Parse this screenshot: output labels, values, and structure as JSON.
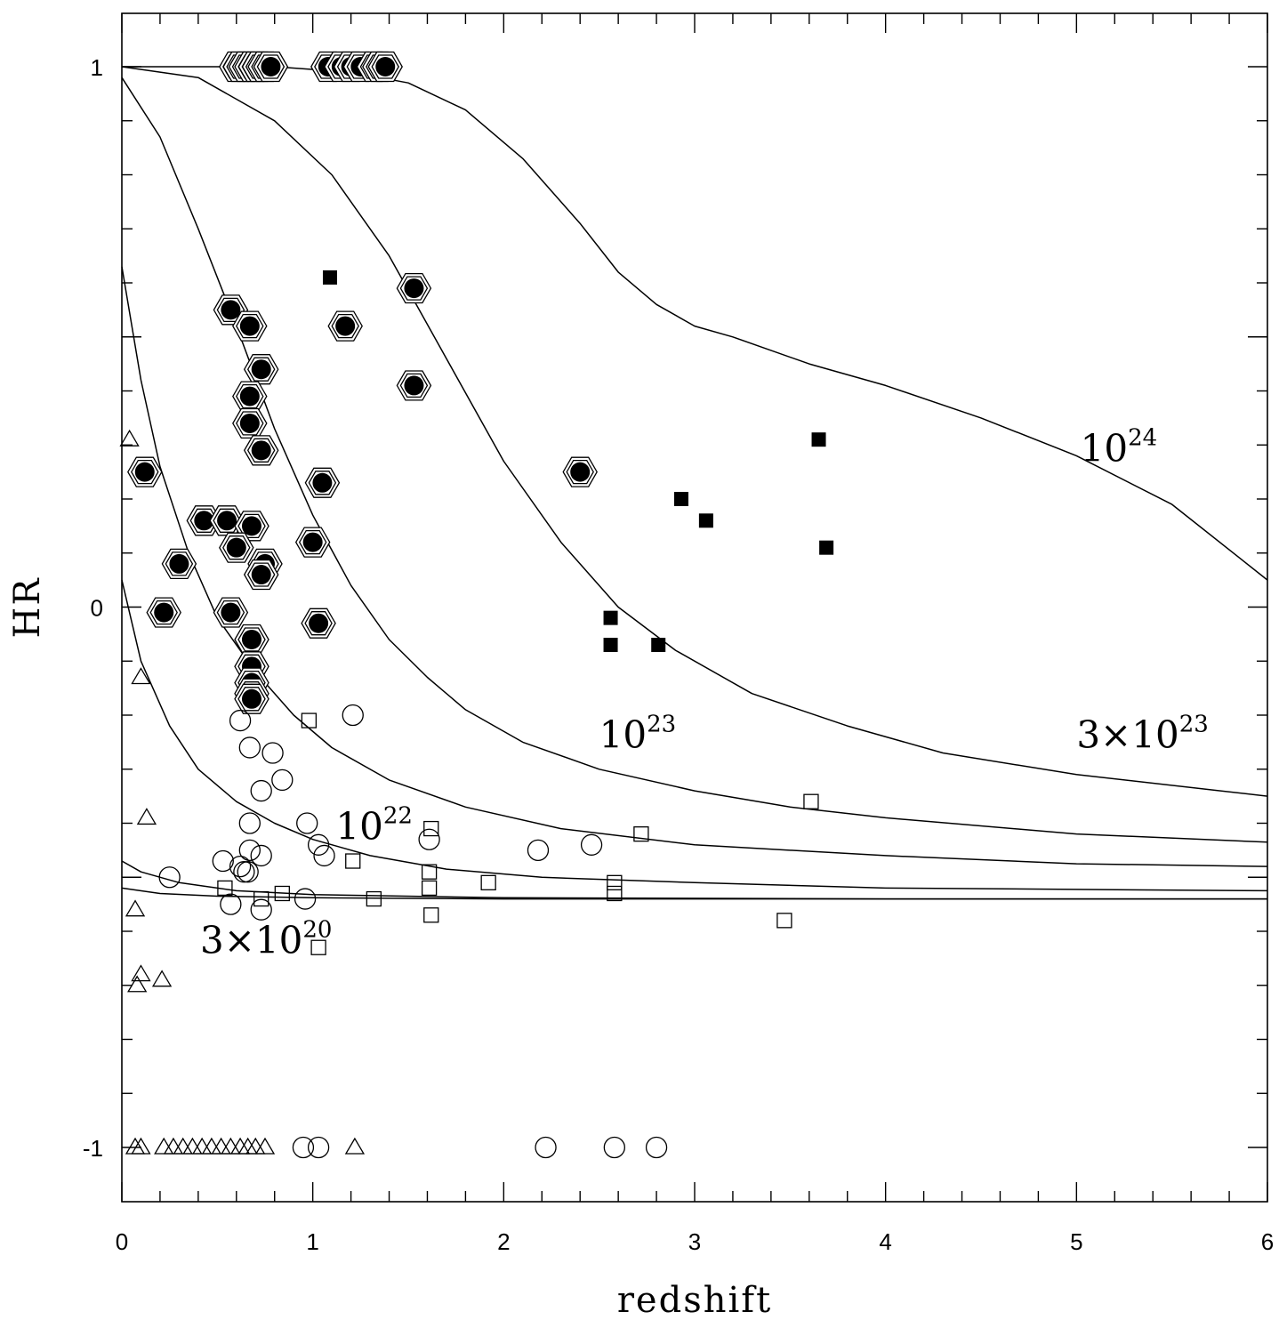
{
  "chart_data": {
    "type": "scatter",
    "title": "",
    "xlabel": "redshift",
    "ylabel": "HR",
    "xlim": [
      0,
      6
    ],
    "ylim": [
      -1.1,
      1.1
    ],
    "x_ticks": [
      {
        "value": 0,
        "label": "0"
      },
      {
        "value": 1,
        "label": "1"
      },
      {
        "value": 2,
        "label": "2"
      },
      {
        "value": 3,
        "label": "3"
      },
      {
        "value": 4,
        "label": "4"
      },
      {
        "value": 5,
        "label": "5"
      },
      {
        "value": 6,
        "label": "6"
      }
    ],
    "y_ticks": [
      {
        "value": -1,
        "label": "-1"
      },
      {
        "value": 0,
        "label": "0"
      },
      {
        "value": 1,
        "label": "1"
      }
    ],
    "curves": [
      {
        "name": "3x10^20",
        "label_base": "3×10",
        "label_exp": "20",
        "label_pos": [
          0.41,
          -0.64
        ],
        "points": [
          [
            0,
            -0.52
          ],
          [
            0.2,
            -0.53
          ],
          [
            0.5,
            -0.535
          ],
          [
            1,
            -0.538
          ],
          [
            2,
            -0.54
          ],
          [
            3,
            -0.54
          ],
          [
            6,
            -0.54
          ]
        ]
      },
      {
        "name": "1e21",
        "label_base": "",
        "label_exp": "",
        "label_pos": null,
        "points": [
          [
            0,
            -0.47
          ],
          [
            0.1,
            -0.49
          ],
          [
            0.3,
            -0.51
          ],
          [
            0.6,
            -0.525
          ],
          [
            1,
            -0.532
          ],
          [
            2,
            -0.538
          ],
          [
            4,
            -0.54
          ],
          [
            6,
            -0.54
          ]
        ]
      },
      {
        "name": "1e22",
        "label_base": "10",
        "label_exp": "22",
        "label_pos": [
          1.12,
          -0.43
        ],
        "points": [
          [
            0,
            0.05
          ],
          [
            0.1,
            -0.1
          ],
          [
            0.25,
            -0.22
          ],
          [
            0.4,
            -0.3
          ],
          [
            0.6,
            -0.36
          ],
          [
            0.8,
            -0.4
          ],
          [
            1,
            -0.43
          ],
          [
            1.3,
            -0.46
          ],
          [
            1.7,
            -0.485
          ],
          [
            2.2,
            -0.5
          ],
          [
            3,
            -0.51
          ],
          [
            4,
            -0.52
          ],
          [
            6,
            -0.525
          ]
        ]
      },
      {
        "name": "3e22",
        "label_base": "",
        "label_exp": "",
        "label_pos": null,
        "points": [
          [
            0,
            0.63
          ],
          [
            0.1,
            0.42
          ],
          [
            0.2,
            0.26
          ],
          [
            0.35,
            0.1
          ],
          [
            0.5,
            -0.02
          ],
          [
            0.7,
            -0.12
          ],
          [
            0.9,
            -0.2
          ],
          [
            1.1,
            -0.26
          ],
          [
            1.4,
            -0.32
          ],
          [
            1.8,
            -0.37
          ],
          [
            2.3,
            -0.41
          ],
          [
            3,
            -0.44
          ],
          [
            4,
            -0.46
          ],
          [
            5,
            -0.475
          ],
          [
            6,
            -0.48
          ]
        ]
      },
      {
        "name": "1e23",
        "label_base": "10",
        "label_exp": "23",
        "label_pos": [
          2.5,
          -0.26
        ],
        "points": [
          [
            0,
            0.98
          ],
          [
            0.2,
            0.87
          ],
          [
            0.4,
            0.7
          ],
          [
            0.6,
            0.52
          ],
          [
            0.8,
            0.33
          ],
          [
            1,
            0.17
          ],
          [
            1.2,
            0.04
          ],
          [
            1.4,
            -0.06
          ],
          [
            1.6,
            -0.13
          ],
          [
            1.8,
            -0.19
          ],
          [
            2.1,
            -0.25
          ],
          [
            2.5,
            -0.3
          ],
          [
            3,
            -0.34
          ],
          [
            3.5,
            -0.37
          ],
          [
            4,
            -0.39
          ],
          [
            5,
            -0.42
          ],
          [
            6,
            -0.435
          ]
        ]
      },
      {
        "name": "3e23",
        "label_base": "3×10",
        "label_exp": "23",
        "label_pos": [
          5.0,
          -0.26
        ],
        "points": [
          [
            0,
            1.0
          ],
          [
            0.4,
            0.98
          ],
          [
            0.8,
            0.9
          ],
          [
            1.1,
            0.8
          ],
          [
            1.4,
            0.65
          ],
          [
            1.7,
            0.46
          ],
          [
            2.0,
            0.27
          ],
          [
            2.3,
            0.12
          ],
          [
            2.6,
            -0.0
          ],
          [
            2.9,
            -0.08
          ],
          [
            3.3,
            -0.16
          ],
          [
            3.8,
            -0.22
          ],
          [
            4.3,
            -0.27
          ],
          [
            5,
            -0.31
          ],
          [
            6,
            -0.35
          ]
        ]
      },
      {
        "name": "1e24",
        "label_base": "10",
        "label_exp": "24",
        "label_pos": [
          5.02,
          0.27
        ],
        "points": [
          [
            0,
            1.0
          ],
          [
            0.8,
            1.0
          ],
          [
            1.2,
            0.99
          ],
          [
            1.5,
            0.97
          ],
          [
            1.8,
            0.92
          ],
          [
            2.1,
            0.83
          ],
          [
            2.4,
            0.71
          ],
          [
            2.6,
            0.62
          ],
          [
            2.8,
            0.56
          ],
          [
            3.0,
            0.52
          ],
          [
            3.2,
            0.5
          ],
          [
            3.6,
            0.45
          ],
          [
            4.0,
            0.41
          ],
          [
            4.5,
            0.35
          ],
          [
            5.0,
            0.28
          ],
          [
            5.5,
            0.19
          ],
          [
            6,
            0.05
          ]
        ]
      }
    ],
    "series": [
      {
        "name": "filled circle in hexagon",
        "marker": "hexdot",
        "points": [
          [
            0.6,
            1.0
          ],
          [
            0.62,
            1.0
          ],
          [
            0.65,
            1.0
          ],
          [
            0.68,
            1.0
          ],
          [
            0.7,
            1.0
          ],
          [
            0.72,
            1.0
          ],
          [
            0.75,
            1.0
          ],
          [
            0.78,
            1.0
          ],
          [
            1.08,
            1.0
          ],
          [
            1.15,
            1.0
          ],
          [
            1.2,
            1.0
          ],
          [
            1.25,
            1.0
          ],
          [
            1.32,
            1.0
          ],
          [
            1.35,
            1.0
          ],
          [
            1.38,
            1.0
          ],
          [
            1.53,
            0.59
          ],
          [
            0.57,
            0.55
          ],
          [
            0.67,
            0.52
          ],
          [
            1.17,
            0.52
          ],
          [
            0.73,
            0.44
          ],
          [
            0.67,
            0.39
          ],
          [
            1.53,
            0.41
          ],
          [
            0.67,
            0.34
          ],
          [
            0.73,
            0.29
          ],
          [
            0.12,
            0.25
          ],
          [
            1.05,
            0.23
          ],
          [
            2.4,
            0.25
          ],
          [
            0.43,
            0.16
          ],
          [
            0.55,
            0.16
          ],
          [
            0.68,
            0.15
          ],
          [
            0.6,
            0.11
          ],
          [
            1.0,
            0.12
          ],
          [
            0.3,
            0.08
          ],
          [
            0.75,
            0.08
          ],
          [
            0.73,
            0.06
          ],
          [
            0.22,
            -0.01
          ],
          [
            0.57,
            -0.01
          ],
          [
            1.03,
            -0.03
          ],
          [
            0.68,
            -0.06
          ],
          [
            0.68,
            -0.11
          ],
          [
            0.68,
            -0.14
          ],
          [
            0.68,
            -0.16
          ],
          [
            0.68,
            -0.17
          ]
        ]
      },
      {
        "name": "filled square",
        "marker": "fsquare",
        "points": [
          [
            1.09,
            0.61
          ],
          [
            3.65,
            0.31
          ],
          [
            2.93,
            0.2
          ],
          [
            3.06,
            0.16
          ],
          [
            3.69,
            0.11
          ],
          [
            2.56,
            -0.02
          ],
          [
            2.56,
            -0.07
          ],
          [
            2.81,
            -0.07
          ]
        ]
      },
      {
        "name": "open circle",
        "marker": "ocircle",
        "points": [
          [
            1.21,
            -0.2
          ],
          [
            0.62,
            -0.21
          ],
          [
            0.67,
            -0.26
          ],
          [
            0.79,
            -0.27
          ],
          [
            0.84,
            -0.32
          ],
          [
            0.73,
            -0.34
          ],
          [
            0.67,
            -0.4
          ],
          [
            0.97,
            -0.4
          ],
          [
            1.03,
            -0.44
          ],
          [
            1.61,
            -0.43
          ],
          [
            1.06,
            -0.46
          ],
          [
            0.67,
            -0.45
          ],
          [
            0.73,
            -0.46
          ],
          [
            0.53,
            -0.47
          ],
          [
            0.62,
            -0.48
          ],
          [
            0.64,
            -0.49
          ],
          [
            0.66,
            -0.49
          ],
          [
            0.25,
            -0.5
          ],
          [
            0.57,
            -0.55
          ],
          [
            0.73,
            -0.56
          ],
          [
            0.96,
            -0.54
          ],
          [
            2.18,
            -0.45
          ],
          [
            2.46,
            -0.44
          ],
          [
            0.95,
            -1.0
          ],
          [
            1.03,
            -1.0
          ],
          [
            2.22,
            -1.0
          ],
          [
            2.58,
            -1.0
          ],
          [
            2.8,
            -1.0
          ]
        ]
      },
      {
        "name": "open square",
        "marker": "osquare",
        "points": [
          [
            0.98,
            -0.21
          ],
          [
            3.61,
            -0.36
          ],
          [
            2.72,
            -0.42
          ],
          [
            1.62,
            -0.41
          ],
          [
            1.21,
            -0.47
          ],
          [
            1.61,
            -0.49
          ],
          [
            0.54,
            -0.52
          ],
          [
            0.73,
            -0.54
          ],
          [
            0.84,
            -0.53
          ],
          [
            1.32,
            -0.54
          ],
          [
            1.61,
            -0.52
          ],
          [
            1.92,
            -0.51
          ],
          [
            2.58,
            -0.51
          ],
          [
            2.58,
            -0.53
          ],
          [
            1.62,
            -0.57
          ],
          [
            3.47,
            -0.58
          ],
          [
            1.03,
            -0.63
          ]
        ]
      },
      {
        "name": "open triangle",
        "marker": "otriangle",
        "points": [
          [
            0.04,
            0.31
          ],
          [
            0.1,
            -0.13
          ],
          [
            0.13,
            -0.39
          ],
          [
            0.07,
            -0.56
          ],
          [
            0.1,
            -0.68
          ],
          [
            0.08,
            -0.7
          ],
          [
            0.21,
            -0.69
          ],
          [
            0.07,
            -1.0
          ],
          [
            0.1,
            -1.0
          ],
          [
            0.22,
            -1.0
          ],
          [
            0.27,
            -1.0
          ],
          [
            0.32,
            -1.0
          ],
          [
            0.37,
            -1.0
          ],
          [
            0.42,
            -1.0
          ],
          [
            0.47,
            -1.0
          ],
          [
            0.52,
            -1.0
          ],
          [
            0.57,
            -1.0
          ],
          [
            0.62,
            -1.0
          ],
          [
            0.66,
            -1.0
          ],
          [
            0.7,
            -1.0
          ],
          [
            0.75,
            -1.0
          ],
          [
            1.22,
            -1.0
          ]
        ]
      }
    ]
  }
}
